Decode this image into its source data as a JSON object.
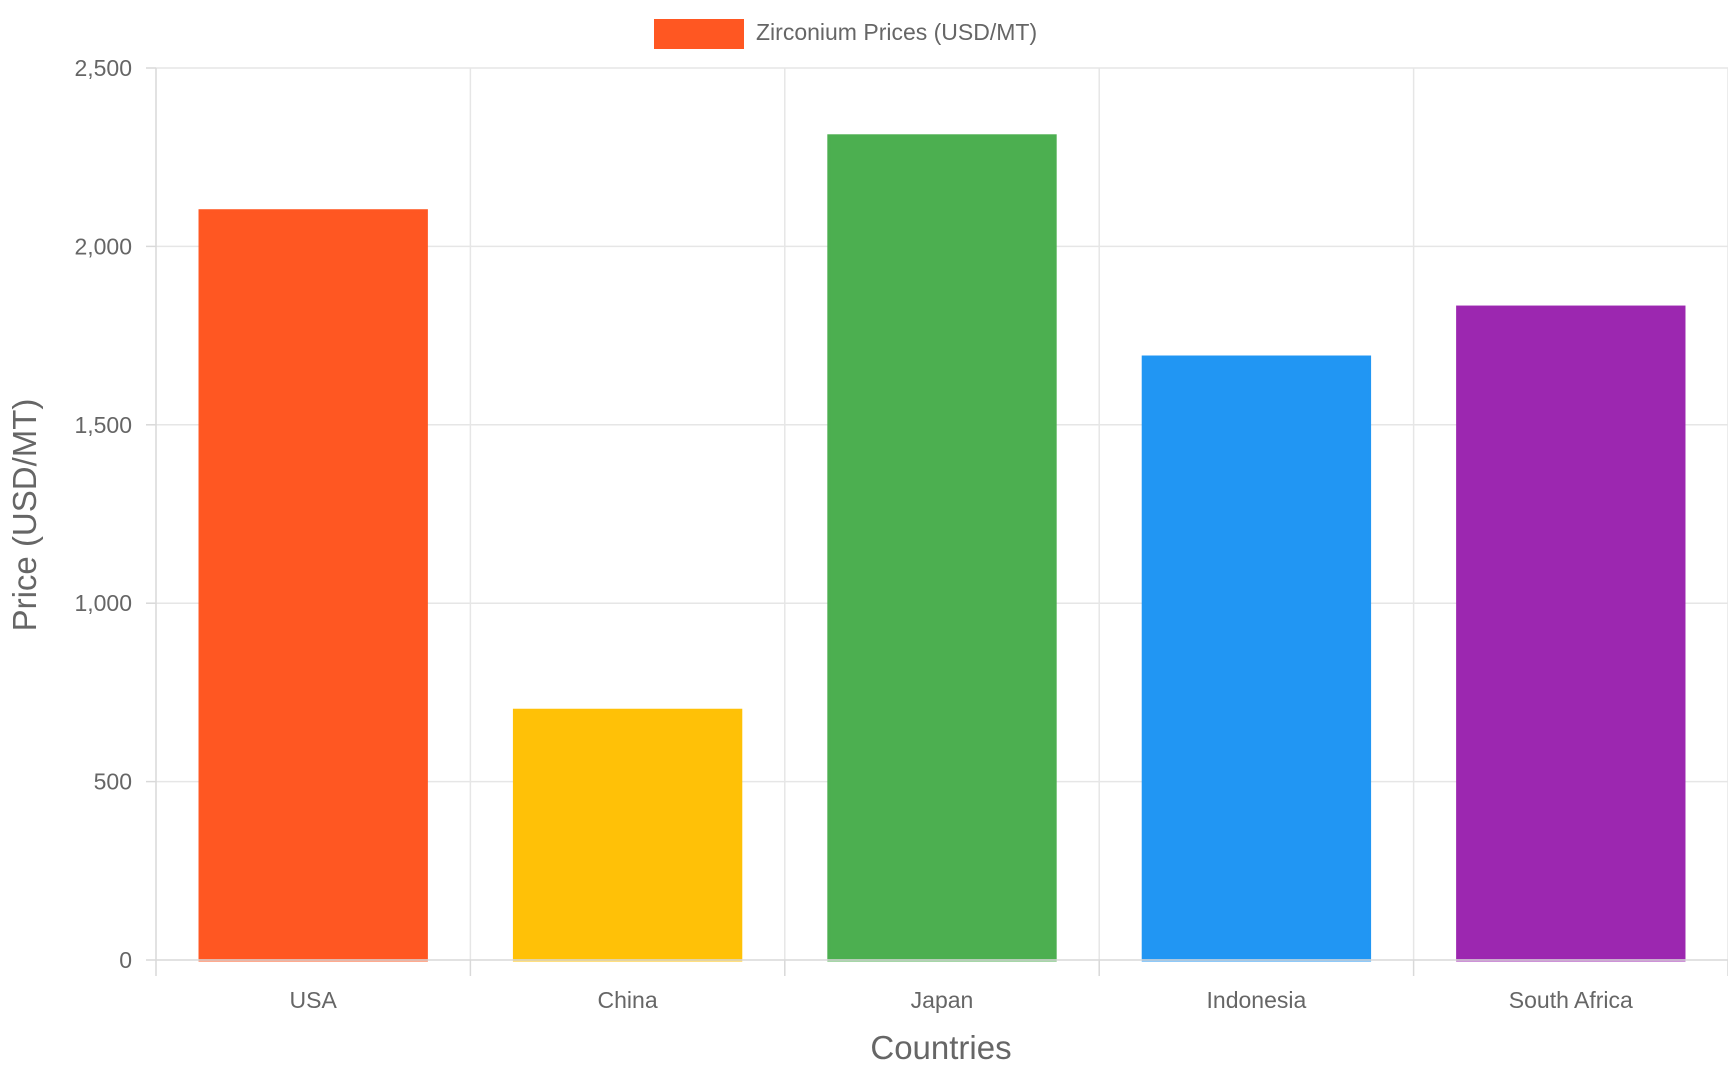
{
  "chart_data": {
    "type": "bar",
    "categories": [
      "USA",
      "China",
      "Japan",
      "Indonesia",
      "South Africa"
    ],
    "series": [
      {
        "name": "Zirconium Prices (USD/MT)",
        "values": [
          2100,
          700,
          2310,
          1690,
          1830
        ],
        "colors": [
          "#FF5722",
          "#FFC107",
          "#4CAF50",
          "#2196F3",
          "#9C27B0"
        ]
      }
    ],
    "xlabel": "Countries",
    "ylabel": "Price (USD/MT)",
    "ylim": [
      0,
      2500
    ],
    "yticks": [
      0,
      500,
      1000,
      1500,
      2000,
      2500
    ],
    "ytick_labels": [
      "0",
      "500",
      "1,000",
      "1,500",
      "2,000",
      "2,500"
    ],
    "grid": true,
    "legend": "top-center"
  }
}
